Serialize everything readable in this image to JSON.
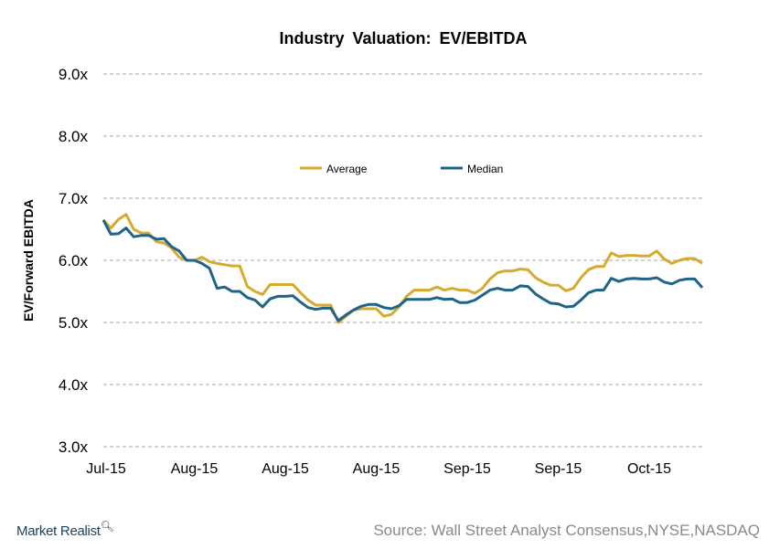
{
  "chart_data": {
    "type": "line",
    "title": "Industry  Valuation:  EV/EBITDA",
    "xlabel": "",
    "ylabel": "EV/Forward EBITDA",
    "ylim": [
      3.0,
      9.0
    ],
    "y_ticks": [
      "3.0x",
      "4.0x",
      "5.0x",
      "6.0x",
      "7.0x",
      "8.0x",
      "9.0x"
    ],
    "x_tick_labels": [
      "Jul-15",
      "Aug-15",
      "Aug-15",
      "Aug-15",
      "Sep-15",
      "Sep-15",
      "Oct-15"
    ],
    "grid": "horizontal dashed",
    "legend": "top-center",
    "series": [
      {
        "name": "Average",
        "color": "#D6AA2E",
        "values": [
          6.65,
          6.52,
          6.66,
          6.74,
          6.5,
          6.44,
          6.44,
          6.3,
          6.28,
          6.2,
          6.05,
          6.0,
          6.0,
          6.05,
          5.98,
          5.95,
          5.93,
          5.91,
          5.91,
          5.58,
          5.5,
          5.45,
          5.61,
          5.61,
          5.61,
          5.61,
          5.48,
          5.36,
          5.28,
          5.28,
          5.28,
          5.0,
          5.1,
          5.2,
          5.22,
          5.22,
          5.22,
          5.1,
          5.13,
          5.25,
          5.42,
          5.52,
          5.52,
          5.52,
          5.57,
          5.52,
          5.55,
          5.52,
          5.52,
          5.47,
          5.55,
          5.7,
          5.8,
          5.83,
          5.83,
          5.86,
          5.85,
          5.72,
          5.65,
          5.6,
          5.6,
          5.51,
          5.55,
          5.72,
          5.85,
          5.9,
          5.9,
          6.12,
          6.06,
          6.08,
          6.08,
          6.07,
          6.07,
          6.15,
          6.02,
          5.95,
          6.0,
          6.03,
          6.03,
          5.95
        ]
      },
      {
        "name": "Median",
        "color": "#1F6389",
        "values": [
          6.65,
          6.42,
          6.43,
          6.52,
          6.38,
          6.4,
          6.4,
          6.34,
          6.35,
          6.22,
          6.15,
          6.0,
          6.0,
          5.95,
          5.87,
          5.55,
          5.57,
          5.5,
          5.5,
          5.4,
          5.36,
          5.25,
          5.38,
          5.42,
          5.42,
          5.43,
          5.33,
          5.24,
          5.21,
          5.23,
          5.23,
          5.03,
          5.12,
          5.2,
          5.26,
          5.29,
          5.29,
          5.24,
          5.22,
          5.27,
          5.37,
          5.37,
          5.37,
          5.37,
          5.4,
          5.37,
          5.38,
          5.32,
          5.32,
          5.36,
          5.44,
          5.52,
          5.55,
          5.52,
          5.52,
          5.59,
          5.58,
          5.46,
          5.38,
          5.31,
          5.3,
          5.25,
          5.26,
          5.36,
          5.48,
          5.52,
          5.52,
          5.71,
          5.66,
          5.7,
          5.71,
          5.7,
          5.7,
          5.72,
          5.65,
          5.62,
          5.68,
          5.7,
          5.7,
          5.56
        ]
      }
    ]
  },
  "footer": {
    "logo": "Market Realist",
    "source": "Source: Wall Street Analyst Consensus,NYSE,NASDAQ"
  }
}
